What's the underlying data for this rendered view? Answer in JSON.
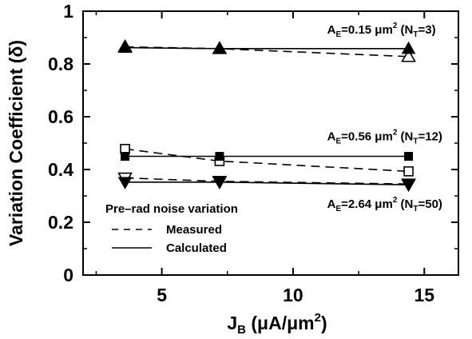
{
  "chart_data": {
    "type": "scatter",
    "xlabel": {
      "main": "J",
      "sub": "B",
      "rest": " (μA/μm",
      "sup": "2",
      "end": ")"
    },
    "ylabel": "Variation Coefficient (δ)",
    "xlim": [
      2,
      16.3
    ],
    "ylim": [
      0,
      1
    ],
    "xticks": [
      5,
      10,
      15
    ],
    "yticks": [
      0,
      0.2,
      0.4,
      0.6,
      0.8,
      1
    ],
    "ytick_labels": [
      "0",
      "0.2",
      "0.4",
      "0.6",
      "0.8",
      "1"
    ],
    "xtick_labels": [
      "5",
      "10",
      "15"
    ],
    "grid": false,
    "groups": [
      {
        "annotation": {
          "prefix": "A",
          "prefix_sub": "E",
          "mid": "=0.15 μm",
          "mid_sup": "2",
          "n": " (N",
          "n_sub": "T",
          "end": "=3)"
        },
        "annotation_at": [
          11.3,
          0.915
        ],
        "marker": "triangle-up",
        "measured": {
          "x": [
            3.6,
            7.2,
            14.4
          ],
          "y": [
            0.865,
            0.858,
            0.828
          ]
        },
        "calculated": {
          "x": [
            3.6,
            7.2,
            14.4
          ],
          "y": [
            0.862,
            0.858,
            0.858
          ]
        }
      },
      {
        "annotation": {
          "prefix": "A",
          "prefix_sub": "E",
          "mid": "=0.56 μm",
          "mid_sup": "2",
          "n": " (N",
          "n_sub": "T",
          "end": "=12)"
        },
        "annotation_at": [
          11.3,
          0.51
        ],
        "marker": "square",
        "measured": {
          "x": [
            3.6,
            7.2,
            14.4
          ],
          "y": [
            0.478,
            0.432,
            0.393
          ]
        },
        "calculated": {
          "x": [
            3.6,
            7.2,
            14.4
          ],
          "y": [
            0.45,
            0.45,
            0.45
          ]
        }
      },
      {
        "annotation": {
          "prefix": "A",
          "prefix_sub": "E",
          "mid": "=2.64 μm",
          "mid_sup": "2",
          "n": " (N",
          "n_sub": "T",
          "end": "=50)"
        },
        "annotation_at": [
          11.3,
          0.255
        ],
        "marker": "triangle-down",
        "measured": {
          "x": [
            3.6,
            7.2,
            14.4
          ],
          "y": [
            0.368,
            0.355,
            0.345
          ]
        },
        "calculated": {
          "x": [
            3.6,
            7.2,
            14.4
          ],
          "y": [
            0.352,
            0.352,
            0.342
          ]
        }
      }
    ],
    "legend": {
      "title": "Pre–rad noise variation",
      "measured_label": "Measured",
      "calculated_label": "Calculated",
      "placement": "lower-left"
    }
  }
}
